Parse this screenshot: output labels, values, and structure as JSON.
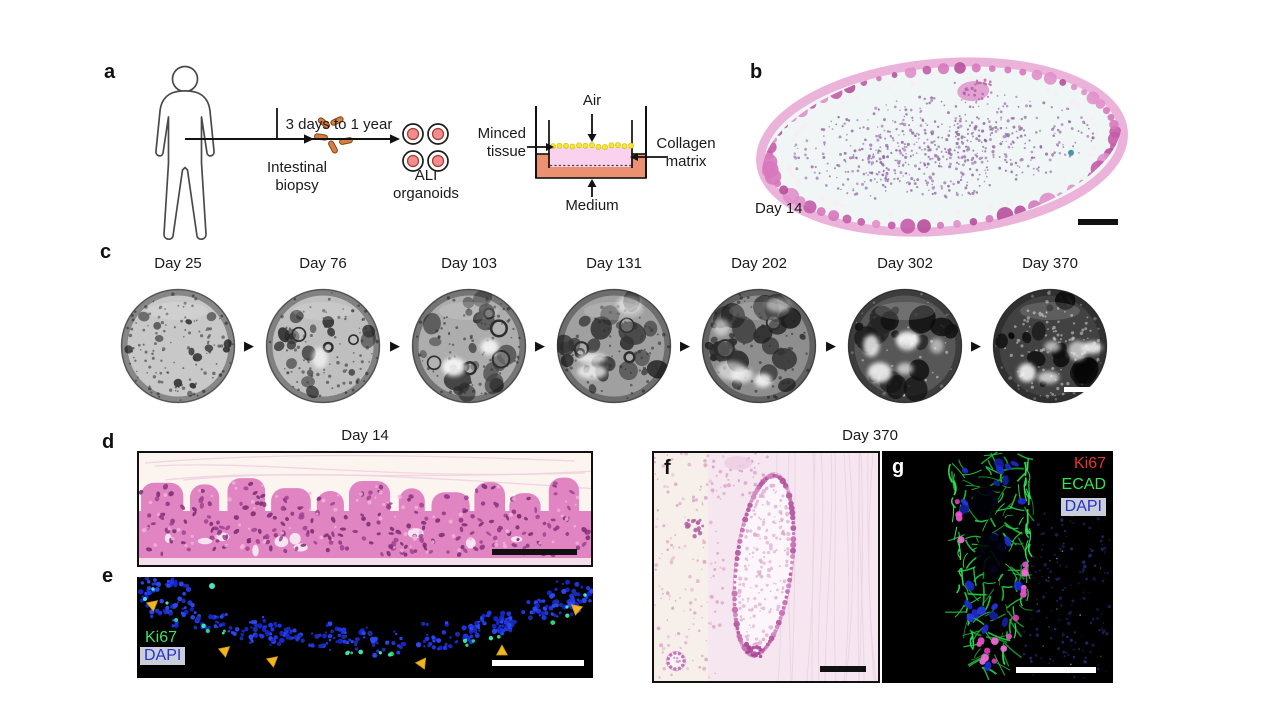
{
  "figure": {
    "panels": {
      "a": {
        "label": "a",
        "biopsy_label": "Intestinal\nbiopsy",
        "timeline_label": "3 days to 1 year",
        "organoids_label": "ALI\norganoids",
        "dish": {
          "air": "Air",
          "minced": "Minced\ntissue",
          "collagen": "Collagen\nmatrix",
          "medium": "Medium"
        }
      },
      "b": {
        "label": "b",
        "day_label": "Day 14"
      },
      "c": {
        "label": "c",
        "arrow_glyph": "▶",
        "days": [
          "Day 25",
          "Day 76",
          "Day 103",
          "Day 131",
          "Day 202",
          "Day 302",
          "Day 370"
        ]
      },
      "d": {
        "label": "d",
        "title": "Day 14"
      },
      "e": {
        "label": "e",
        "marker_ki67": "Ki67",
        "marker_dapi": "DAPI"
      },
      "f": {
        "label": "f"
      },
      "fg_title": "Day 370",
      "g": {
        "label": "g",
        "marker_ki67": "Ki67",
        "marker_ecad": "ECAD",
        "marker_dapi": "DAPI"
      }
    },
    "colors": {
      "he_magenta": "#e085c2",
      "medium_salmon": "#eb9070",
      "collagen_pink": "#fad2ee",
      "minced_yellow": "#f6e52e",
      "organoid_fill": "#f28c8d",
      "ki67_green": "#3ce06a",
      "dapi_blue": "#2531cf",
      "ki67_red": "#e8342c",
      "ecad_green": "#35e44d",
      "arrowhead_yellow": "#f0b61e"
    }
  }
}
